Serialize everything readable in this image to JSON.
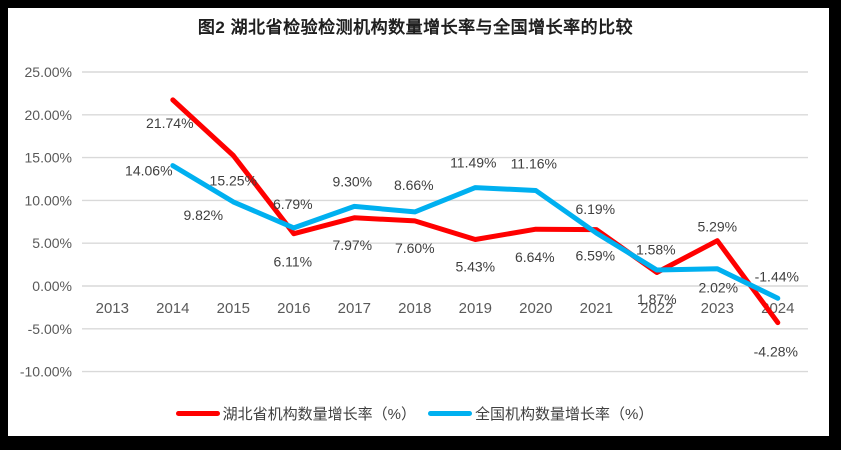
{
  "title": "图2 湖北省检验检测机构数量增长率与全国增长率的比较",
  "chart_data": {
    "type": "line",
    "categories": [
      "2013",
      "2014",
      "2015",
      "2016",
      "2017",
      "2018",
      "2019",
      "2020",
      "2021",
      "2022",
      "2023",
      "2024"
    ],
    "series": [
      {
        "name": "湖北省机构数量增长率（%）",
        "color": "#FF0000",
        "values": [
          null,
          21.74,
          15.25,
          6.11,
          7.97,
          7.6,
          5.43,
          6.64,
          6.59,
          1.58,
          5.29,
          -4.28
        ],
        "labels": [
          null,
          "21.74%",
          "15.25%",
          "6.11%",
          "7.97%",
          "7.60%",
          "5.43%",
          "6.64%",
          "6.59%",
          "1.58%",
          "5.29%",
          "-4.28%"
        ],
        "label_offsets": [
          null,
          [
            -3,
            23
          ],
          [
            0,
            25
          ],
          [
            -1,
            28
          ],
          [
            -2,
            27
          ],
          [
            0,
            27
          ],
          [
            0,
            27
          ],
          [
            -1,
            28
          ],
          [
            -1,
            26
          ],
          [
            -1,
            -23
          ],
          [
            0,
            -14
          ],
          [
            -2,
            29
          ]
        ]
      },
      {
        "name": "全国机构数量增长率（%）",
        "color": "#00B0F0",
        "values": [
          null,
          14.06,
          9.82,
          6.79,
          9.3,
          8.66,
          11.49,
          11.16,
          6.19,
          1.87,
          2.02,
          -1.44
        ],
        "labels": [
          null,
          "14.06%",
          "9.82%",
          "6.79%",
          "9.30%",
          "8.66%",
          "11.49%",
          "11.16%",
          "6.19%",
          "1.87%",
          "2.02%",
          "-1.44%"
        ],
        "label_offsets": [
          null,
          [
            -24,
            5
          ],
          [
            -30,
            13
          ],
          [
            -1,
            -24
          ],
          [
            -2,
            -25
          ],
          [
            -1,
            -27
          ],
          [
            -2,
            -25
          ],
          [
            -2,
            -27
          ],
          [
            -1,
            -24
          ],
          [
            0,
            29
          ],
          [
            1,
            19
          ],
          [
            -1,
            -22
          ]
        ]
      }
    ],
    "y_axis": {
      "tick_labels": [
        "25.00%",
        "20.00%",
        "15.00%",
        "10.00%",
        "5.00%",
        "0.00%",
        "-5.00%",
        "-10.00%"
      ],
      "tick_values": [
        25,
        20,
        15,
        10,
        5,
        0,
        -5,
        -10
      ],
      "min": -10,
      "max": 25
    },
    "xlabel": "",
    "ylabel": "",
    "grid": "horizontal",
    "legend_position": "bottom"
  },
  "colors": {
    "gridline": "#D9D9D9",
    "axis_text": "#595959",
    "data_label_text": "#404040",
    "frame": "#000000"
  }
}
